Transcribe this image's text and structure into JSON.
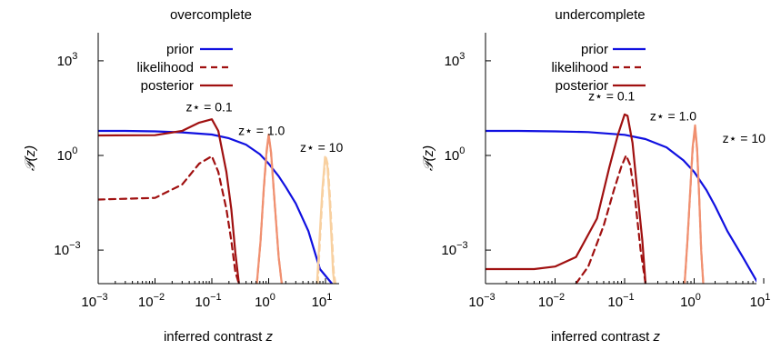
{
  "chart_data": [
    {
      "type": "line",
      "title": "overcomplete",
      "xlabel": "inferred contrast",
      "xlabel_var": "z",
      "ylabel": "𝒫(z)",
      "xscale": "log",
      "yscale": "log",
      "xlim": [
        0.001,
        20
      ],
      "ylim": [
        5e-05,
        10000
      ],
      "grid": false,
      "legend_position": "top-left",
      "legend": [
        {
          "label": "prior",
          "color": "#1010e0",
          "dash": "solid"
        },
        {
          "label": "likelihood",
          "color": "#a01010",
          "dash": "dashed"
        },
        {
          "label": "posterior",
          "color": "#a01010",
          "dash": "solid"
        }
      ],
      "x_ticks": [
        {
          "value": 0.001,
          "base": "10",
          "exp": "−3"
        },
        {
          "value": 0.01,
          "base": "10",
          "exp": "−2"
        },
        {
          "value": 0.1,
          "base": "10",
          "exp": "−1"
        },
        {
          "value": 1,
          "base": "10",
          "exp": "0"
        },
        {
          "value": 10,
          "base": "10",
          "exp": "1"
        }
      ],
      "y_ticks": [
        {
          "value": 0.001,
          "base": "10",
          "exp": "−3"
        },
        {
          "value": 1,
          "base": "10",
          "exp": "0"
        },
        {
          "value": 1000,
          "base": "10",
          "exp": "3"
        }
      ],
      "annotations": [
        {
          "label": "z⋆ = 0.1",
          "x": 0.09,
          "y": 25
        },
        {
          "label": "z⋆ = 1.0",
          "x": 0.75,
          "y": 4.5
        },
        {
          "label": "z⋆ = 10",
          "x": 8.5,
          "y": 1.3
        }
      ],
      "series": [
        {
          "role": "prior",
          "color": "#1010e0",
          "dash": "solid",
          "x": [
            0.001,
            0.003,
            0.01,
            0.03,
            0.1,
            0.2,
            0.4,
            0.7,
            1,
            1.5,
            2,
            3,
            5,
            8,
            13
          ],
          "y": [
            6,
            6,
            5.8,
            5.4,
            4.6,
            3.5,
            2.2,
            1.1,
            0.55,
            0.22,
            0.1,
            0.03,
            0.004,
            0.00025,
            5e-05
          ]
        },
        {
          "role": "likelihood",
          "color": "#a01010",
          "dash": "dashed",
          "x": [
            0.001,
            0.01,
            0.03,
            0.06,
            0.1,
            0.13,
            0.18,
            0.22,
            0.26,
            0.3
          ],
          "y": [
            0.04,
            0.045,
            0.12,
            0.55,
            0.95,
            0.3,
            0.02,
            0.002,
            0.0002,
            5e-05
          ]
        },
        {
          "role": "posterior",
          "color": "#a01010",
          "dash": "solid",
          "x": [
            0.001,
            0.01,
            0.03,
            0.06,
            0.1,
            0.13,
            0.18,
            0.22,
            0.26,
            0.3
          ],
          "y": [
            4.3,
            4.4,
            6,
            11,
            14,
            6,
            0.3,
            0.02,
            0.0008,
            5e-05
          ]
        },
        {
          "role": "likelihood",
          "color": "#f09070",
          "dash": "dashed",
          "x": [
            0.62,
            0.72,
            0.82,
            0.92,
            1.0,
            1.1,
            1.3,
            1.5,
            1.7
          ],
          "y": [
            5e-05,
            0.002,
            0.08,
            1.2,
            4.3,
            1.2,
            0.02,
            0.0006,
            5e-05
          ]
        },
        {
          "role": "posterior",
          "color": "#f09070",
          "dash": "solid",
          "x": [
            0.62,
            0.72,
            0.82,
            0.92,
            1.0,
            1.1,
            1.3,
            1.5,
            1.7
          ],
          "y": [
            5e-05,
            0.002,
            0.09,
            1.4,
            4.6,
            1.3,
            0.02,
            0.0006,
            5e-05
          ]
        },
        {
          "role": "likelihood",
          "color": "#f8d0a0",
          "dash": "dashed",
          "x": [
            7.3,
            8,
            9,
            10,
            11,
            12,
            13,
            14,
            15
          ],
          "y": [
            5e-05,
            0.002,
            0.08,
            1.0,
            0.5,
            0.05,
            0.003,
            0.0002,
            5e-05
          ]
        },
        {
          "role": "posterior",
          "color": "#f8d0a0",
          "dash": "solid",
          "x": [
            7.1,
            7.8,
            8.8,
            9.8,
            10.8,
            11.8,
            12.8,
            13.6,
            14.3
          ],
          "y": [
            5e-05,
            0.002,
            0.08,
            0.9,
            0.45,
            0.04,
            0.002,
            0.0002,
            5e-05
          ]
        }
      ]
    },
    {
      "type": "line",
      "title": "undercomplete",
      "xlabel": "inferred contrast",
      "xlabel_var": "z",
      "ylabel": "𝒫(z)",
      "xscale": "log",
      "yscale": "log",
      "xlim": [
        0.001,
        20
      ],
      "ylim": [
        5e-05,
        10000
      ],
      "grid": false,
      "legend_position": "top-left",
      "legend": [
        {
          "label": "prior",
          "color": "#1010e0",
          "dash": "solid"
        },
        {
          "label": "likelihood",
          "color": "#a01010",
          "dash": "dashed"
        },
        {
          "label": "posterior",
          "color": "#a01010",
          "dash": "solid"
        }
      ],
      "x_ticks": [
        {
          "value": 0.001,
          "base": "10",
          "exp": "−3"
        },
        {
          "value": 0.01,
          "base": "10",
          "exp": "−2"
        },
        {
          "value": 0.1,
          "base": "10",
          "exp": "−1"
        },
        {
          "value": 1,
          "base": "10",
          "exp": "0"
        },
        {
          "value": 10,
          "base": "10",
          "exp": "1"
        }
      ],
      "y_ticks": [
        {
          "value": 0.001,
          "base": "10",
          "exp": "−3"
        },
        {
          "value": 1,
          "base": "10",
          "exp": "0"
        },
        {
          "value": 1000,
          "base": "10",
          "exp": "3"
        }
      ],
      "annotations": [
        {
          "label": "z⋆ = 0.1",
          "x": 0.065,
          "y": 55
        },
        {
          "label": "z⋆ = 1.0",
          "x": 0.5,
          "y": 13
        },
        {
          "label": "z⋆ = 10",
          "x": 5.2,
          "y": 2.5
        }
      ],
      "series": [
        {
          "role": "prior",
          "color": "#1010e0",
          "dash": "solid",
          "x": [
            0.001,
            0.003,
            0.01,
            0.03,
            0.1,
            0.2,
            0.4,
            0.7,
            1,
            1.5,
            2,
            3,
            5,
            8,
            11
          ],
          "y": [
            6,
            6,
            5.8,
            5.5,
            4.5,
            3.3,
            1.8,
            0.7,
            0.3,
            0.08,
            0.025,
            0.004,
            0.0006,
            0.0001,
            5e-05
          ]
        },
        {
          "role": "likelihood",
          "color": "#a01010",
          "dash": "dashed",
          "x": [
            0.02,
            0.03,
            0.05,
            0.07,
            0.09,
            0.105,
            0.12,
            0.14,
            0.17,
            0.2
          ],
          "y": [
            5e-05,
            0.0003,
            0.006,
            0.08,
            0.45,
            1.0,
            0.5,
            0.05,
            0.001,
            5e-05
          ]
        },
        {
          "role": "posterior",
          "color": "#a01010",
          "dash": "solid",
          "x": [
            0.001,
            0.005,
            0.01,
            0.02,
            0.04,
            0.06,
            0.08,
            0.1,
            0.11,
            0.13,
            0.15,
            0.18,
            0.2
          ],
          "y": [
            0.00025,
            0.00025,
            0.0003,
            0.0006,
            0.01,
            0.4,
            4.5,
            20,
            18,
            2.5,
            0.1,
            0.002,
            5e-05
          ]
        },
        {
          "role": "likelihood",
          "color": "#f09070",
          "dash": "dashed",
          "x": [
            0.73,
            0.8,
            0.88,
            0.95,
            1.03,
            1.1,
            1.18,
            1.26,
            1.35
          ],
          "y": [
            5e-05,
            0.002,
            0.08,
            1.5,
            8,
            1.5,
            0.05,
            0.001,
            5e-05
          ]
        },
        {
          "role": "posterior",
          "color": "#f09070",
          "dash": "solid",
          "x": [
            0.73,
            0.8,
            0.88,
            0.95,
            1.03,
            1.1,
            1.18,
            1.26,
            1.35
          ],
          "y": [
            5e-05,
            0.002,
            0.09,
            1.8,
            9,
            1.7,
            0.05,
            0.001,
            5e-05
          ]
        },
        {
          "role": "likelihood",
          "color": "#f8d0a0",
          "dash": "dashed",
          "x": [
            10.3,
            11,
            11.7,
            12.3,
            13,
            13.6,
            14.3,
            15,
            15.8
          ],
          "y": [
            5e-05,
            0.002,
            0.08,
            0.6,
            1.0,
            0.3,
            0.02,
            0.001,
            5e-05
          ]
        },
        {
          "role": "posterior",
          "color": "#f8d0a0",
          "dash": "solid",
          "x": [
            10.1,
            10.8,
            11.5,
            12.1,
            12.8,
            13.4,
            14.1,
            14.8,
            15.6
          ],
          "y": [
            5e-05,
            0.002,
            0.08,
            0.55,
            0.95,
            0.28,
            0.02,
            0.001,
            5e-05
          ]
        }
      ]
    }
  ]
}
